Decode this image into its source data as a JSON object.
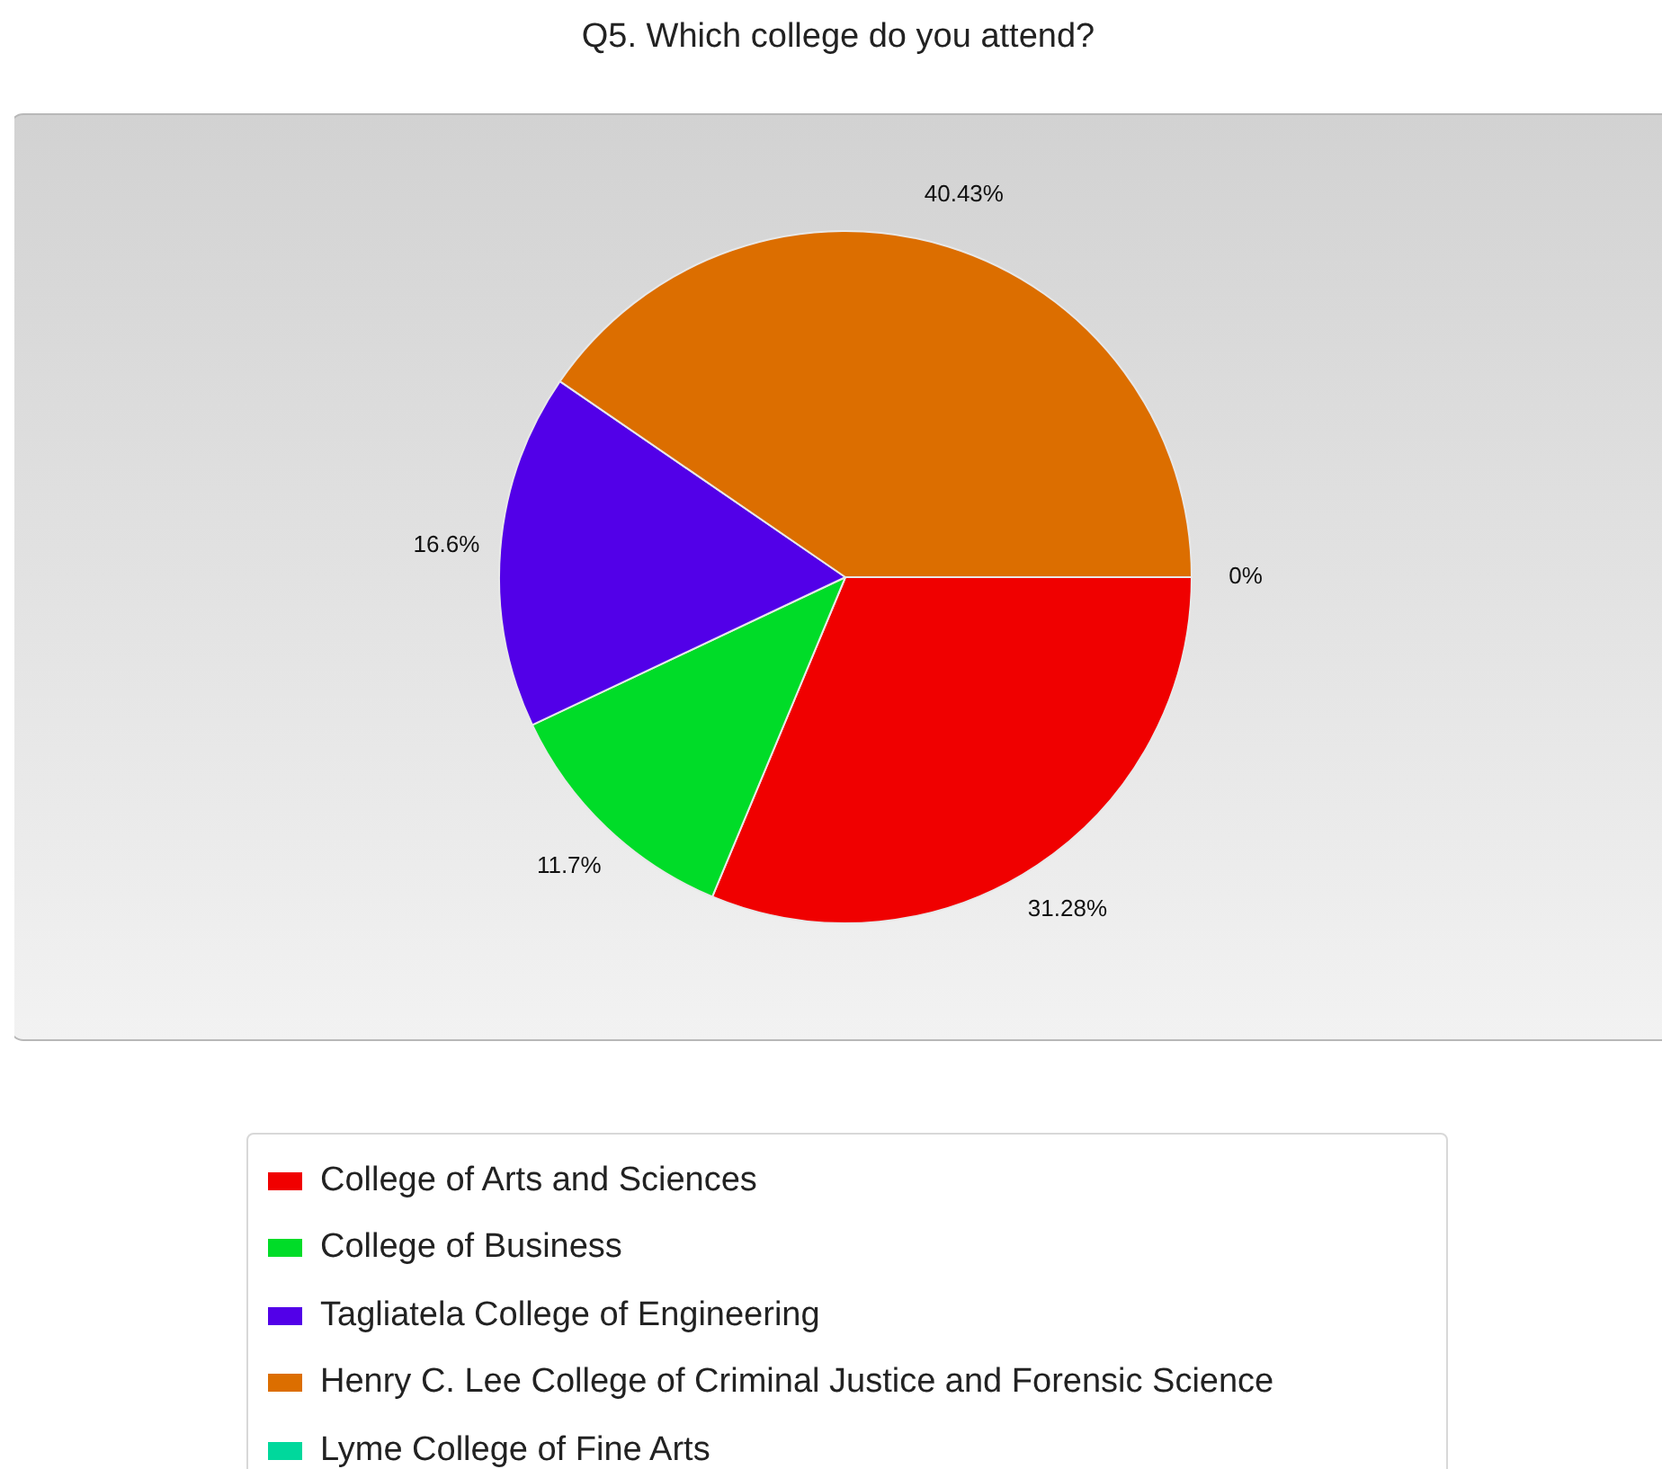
{
  "chart_data": {
    "type": "pie",
    "title": "Q5. Which college do you attend?",
    "categories": [
      "College of Arts and Sciences",
      "College of Business",
      "Tagliatela College of Engineering",
      "Henry C. Lee College of Criminal Justice and Forensic Science",
      "Lyme College of Fine Arts"
    ],
    "values": [
      31.28,
      11.7,
      16.6,
      40.43,
      0
    ],
    "colors": [
      "#f00000",
      "#00dc28",
      "#5200e8",
      "#dc6e00",
      "#00d89c"
    ],
    "value_labels": [
      "31.28%",
      "11.7%",
      "16.6%",
      "40.43%",
      "0%"
    ],
    "legend": "bottom"
  }
}
